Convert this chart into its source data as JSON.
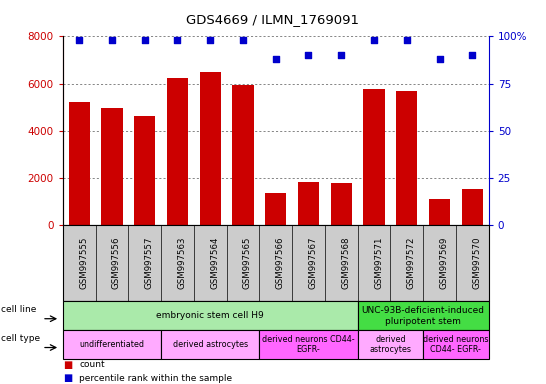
{
  "title": "GDS4669 / ILMN_1769091",
  "samples": [
    "GSM997555",
    "GSM997556",
    "GSM997557",
    "GSM997563",
    "GSM997564",
    "GSM997565",
    "GSM997566",
    "GSM997567",
    "GSM997568",
    "GSM997571",
    "GSM997572",
    "GSM997569",
    "GSM997570"
  ],
  "counts": [
    5200,
    4950,
    4600,
    6250,
    6500,
    5950,
    1350,
    1800,
    1750,
    5750,
    5700,
    1100,
    1500
  ],
  "percentiles": [
    98,
    98,
    98,
    98,
    98,
    98,
    88,
    90,
    90,
    98,
    98,
    88,
    90
  ],
  "bar_color": "#cc0000",
  "dot_color": "#0000cc",
  "ylim_left": [
    0,
    8000
  ],
  "ylim_right": [
    0,
    100
  ],
  "yticks_left": [
    0,
    2000,
    4000,
    6000,
    8000
  ],
  "yticks_right": [
    0,
    25,
    50,
    75,
    100
  ],
  "ylabel_right_ticks": [
    "0",
    "25",
    "50",
    "75",
    "100%"
  ],
  "cell_line_groups": [
    {
      "label": "embryonic stem cell H9",
      "start": 0,
      "end": 8,
      "color": "#aaeaaa"
    },
    {
      "label": "UNC-93B-deficient-induced\npluripotent stem",
      "start": 9,
      "end": 12,
      "color": "#44dd44"
    }
  ],
  "cell_type_groups": [
    {
      "label": "undifferentiated",
      "start": 0,
      "end": 2,
      "color": "#ffaaff"
    },
    {
      "label": "derived astrocytes",
      "start": 3,
      "end": 5,
      "color": "#ffaaff"
    },
    {
      "label": "derived neurons CD44-\nEGFR-",
      "start": 6,
      "end": 8,
      "color": "#ff66ff"
    },
    {
      "label": "derived\nastrocytes",
      "start": 9,
      "end": 10,
      "color": "#ffaaff"
    },
    {
      "label": "derived neurons\nCD44- EGFR-",
      "start": 11,
      "end": 12,
      "color": "#ff66ff"
    }
  ],
  "legend_count_color": "#cc0000",
  "legend_pct_color": "#0000cc",
  "background_color": "#ffffff",
  "grid_color": "#555555",
  "xtick_bg": "#cccccc"
}
